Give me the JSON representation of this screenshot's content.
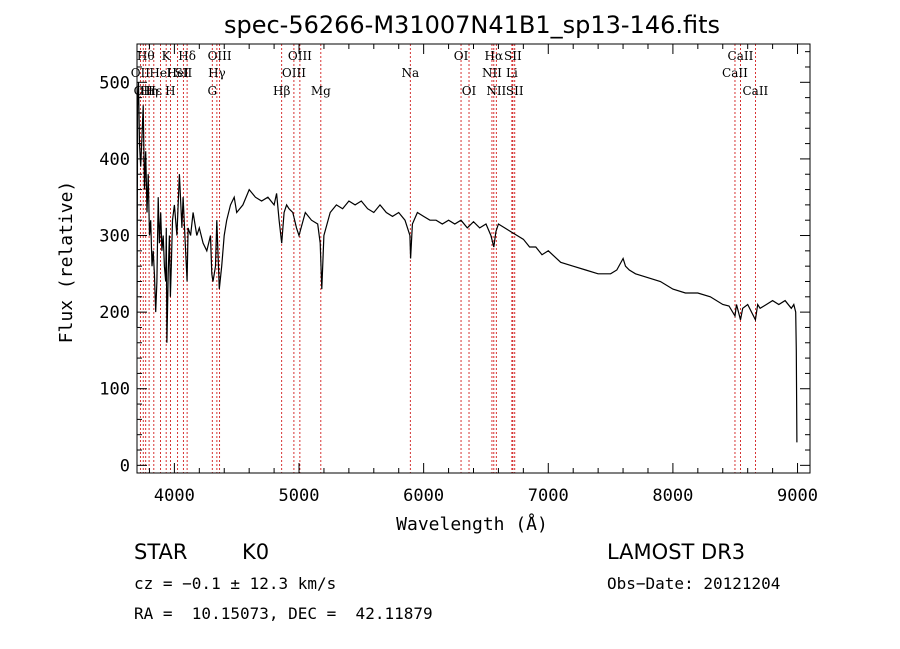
{
  "chart_data": {
    "type": "line",
    "title": "spec-56266-M31007N41B1_sp13-146.fits",
    "xlabel": "Wavelength (Å)",
    "ylabel": "Flux (relative)",
    "xlim": [
      3700,
      9100
    ],
    "ylim": [
      -10,
      550
    ],
    "xticks": [
      4000,
      5000,
      6000,
      7000,
      8000,
      9000
    ],
    "yticks": [
      0,
      100,
      200,
      300,
      400,
      500
    ],
    "series": [
      {
        "name": "flux",
        "x": [
          3700,
          3705,
          3712,
          3720,
          3730,
          3740,
          3750,
          3760,
          3770,
          3780,
          3790,
          3800,
          3810,
          3820,
          3830,
          3840,
          3850,
          3860,
          3870,
          3880,
          3890,
          3900,
          3910,
          3920,
          3930,
          3935,
          3940,
          3950,
          3960,
          3968,
          3975,
          3985,
          4000,
          4020,
          4040,
          4060,
          4070,
          4090,
          4102,
          4110,
          4130,
          4150,
          4180,
          4200,
          4230,
          4260,
          4290,
          4300,
          4310,
          4330,
          4340,
          4360,
          4380,
          4400,
          4420,
          4450,
          4480,
          4500,
          4550,
          4600,
          4650,
          4700,
          4750,
          4800,
          4820,
          4840,
          4861,
          4880,
          4900,
          4920,
          4950,
          4980,
          5000,
          5050,
          5100,
          5150,
          5170,
          5183,
          5200,
          5250,
          5300,
          5350,
          5400,
          5450,
          5500,
          5550,
          5600,
          5650,
          5700,
          5750,
          5800,
          5850,
          5890,
          5895,
          5910,
          5950,
          6000,
          6050,
          6100,
          6150,
          6200,
          6250,
          6300,
          6350,
          6400,
          6450,
          6500,
          6540,
          6563,
          6580,
          6600,
          6650,
          6700,
          6750,
          6800,
          6850,
          6900,
          6950,
          7000,
          7100,
          7200,
          7300,
          7400,
          7500,
          7550,
          7600,
          7620,
          7650,
          7700,
          7800,
          7900,
          8000,
          8100,
          8200,
          8300,
          8400,
          8450,
          8498,
          8510,
          8542,
          8560,
          8600,
          8662,
          8680,
          8700,
          8750,
          8800,
          8850,
          8900,
          8950,
          8970,
          8985,
          8990,
          8995
        ],
        "values": [
          180,
          470,
          500,
          420,
          390,
          430,
          470,
          360,
          410,
          330,
          380,
          300,
          320,
          260,
          280,
          250,
          200,
          240,
          350,
          290,
          330,
          280,
          300,
          260,
          240,
          310,
          160,
          250,
          300,
          220,
          260,
          320,
          340,
          300,
          380,
          310,
          350,
          280,
          240,
          310,
          300,
          330,
          300,
          310,
          290,
          280,
          300,
          250,
          240,
          260,
          320,
          230,
          260,
          300,
          320,
          340,
          350,
          330,
          340,
          360,
          350,
          345,
          350,
          340,
          355,
          320,
          290,
          330,
          340,
          335,
          330,
          310,
          300,
          330,
          320,
          315,
          290,
          230,
          300,
          330,
          340,
          335,
          345,
          340,
          345,
          335,
          330,
          340,
          330,
          325,
          330,
          320,
          300,
          270,
          315,
          330,
          325,
          320,
          320,
          315,
          320,
          315,
          320,
          310,
          318,
          310,
          315,
          300,
          285,
          305,
          315,
          310,
          305,
          300,
          295,
          285,
          285,
          275,
          280,
          265,
          260,
          255,
          250,
          250,
          255,
          270,
          260,
          255,
          250,
          245,
          240,
          230,
          225,
          225,
          220,
          210,
          208,
          195,
          210,
          190,
          205,
          210,
          190,
          210,
          205,
          210,
          215,
          210,
          215,
          205,
          210,
          200,
          150,
          30
        ]
      }
    ],
    "lines": [
      {
        "x": 3727,
        "label": "OII",
        "row": 2
      },
      {
        "x": 3750,
        "label": "OII",
        "row": 3
      },
      {
        "x": 3770,
        "label": "Hθ",
        "row": 1
      },
      {
        "x": 3797,
        "label": "Hη",
        "row": 3
      },
      {
        "x": 3835,
        "label": "Hε",
        "row": 3
      },
      {
        "x": 3889,
        "label": "HeI",
        "row": 2
      },
      {
        "x": 3934,
        "label": "K",
        "row": 1
      },
      {
        "x": 3968,
        "label": "H",
        "row": 3
      },
      {
        "x": 4026,
        "label": "HeI",
        "row": 2
      },
      {
        "x": 4072,
        "label": "SII",
        "row": 2
      },
      {
        "x": 4102,
        "label": "Hδ",
        "row": 1
      },
      {
        "x": 4304,
        "label": "G",
        "row": 3
      },
      {
        "x": 4341,
        "label": "Hγ",
        "row": 2
      },
      {
        "x": 4363,
        "label": "OIII",
        "row": 1
      },
      {
        "x": 4861,
        "label": "Hβ",
        "row": 3
      },
      {
        "x": 4959,
        "label": "OIII",
        "row": 2
      },
      {
        "x": 5007,
        "label": "OIII",
        "row": 1
      },
      {
        "x": 5175,
        "label": "Mg",
        "row": 3
      },
      {
        "x": 5893,
        "label": "Na",
        "row": 2
      },
      {
        "x": 6300,
        "label": "OI",
        "row": 1
      },
      {
        "x": 6364,
        "label": "OI",
        "row": 3
      },
      {
        "x": 6548,
        "label": "NII",
        "row": 2
      },
      {
        "x": 6563,
        "label": "Hα",
        "row": 1
      },
      {
        "x": 6583,
        "label": "NII",
        "row": 3
      },
      {
        "x": 6708,
        "label": "Li",
        "row": 2
      },
      {
        "x": 6716,
        "label": "SII",
        "row": 1
      },
      {
        "x": 6731,
        "label": "SII",
        "row": 3
      },
      {
        "x": 8498,
        "label": "CaII",
        "row": 2
      },
      {
        "x": 8542,
        "label": "CaII",
        "row": 1
      },
      {
        "x": 8662,
        "label": "CaII",
        "row": 3
      }
    ]
  },
  "info": {
    "class": "STAR",
    "subclass": "K0",
    "survey": "LAMOST DR3",
    "cz": "cz = −0.1 ± 12.3 km/s",
    "obs_date": "Obs−Date: 20121204",
    "coords": "RA =  10.15073, DEC =  42.11879"
  },
  "colors": {
    "spectrum": "#000000",
    "line_marker": "#cc0000"
  }
}
